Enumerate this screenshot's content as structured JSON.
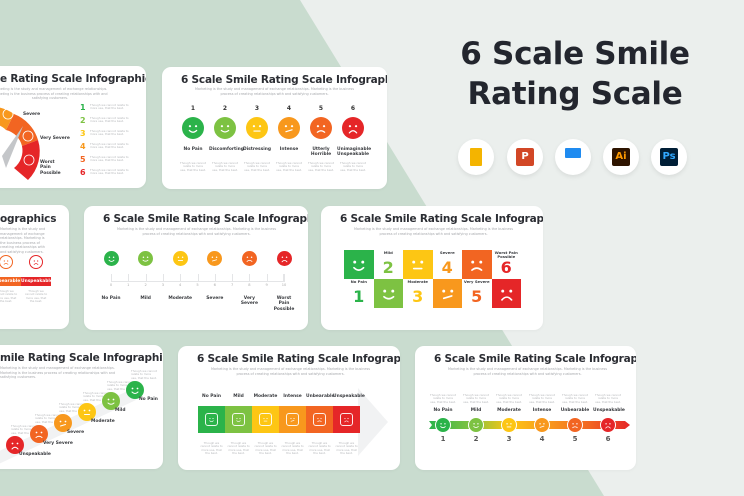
{
  "header": {
    "title_line1": "6 Scale Smile",
    "title_line2": "Rating Scale"
  },
  "apps": [
    {
      "name": "Google Slides",
      "icon": "google-slides-icon",
      "glyph": "",
      "color": "#f4b400"
    },
    {
      "name": "PowerPoint",
      "icon": "powerpoint-icon",
      "glyph": "P",
      "color": "#d24726"
    },
    {
      "name": "Keynote",
      "icon": "keynote-icon",
      "glyph": "",
      "color": "#1f8bf0"
    },
    {
      "name": "Illustrator",
      "icon": "illustrator-icon",
      "glyph": "Ai",
      "color": "#ff9a00"
    },
    {
      "name": "Photoshop",
      "icon": "photoshop-icon",
      "glyph": "Ps",
      "color": "#31a8ff"
    }
  ],
  "colors": {
    "green": "#2bb34a",
    "lime": "#7dc242",
    "yellow": "#fdc614",
    "orange": "#f8981d",
    "dark_orange": "#f26522",
    "red": "#e52628",
    "bg_green": "#c9dccf",
    "bg_gray": "#ebefed"
  },
  "common": {
    "card_title": "6 Scale Smile Rating Scale Infographics",
    "card_title_partial_a": "e Rating Scale Infographics",
    "card_title_partial_b": "ographics",
    "card_title_partial_c": "mile Rating Scale Infographics",
    "subtitle": "Marketing is the study and management of exchange relationships. Marketing is the business process of creating relationships with and satisfying customers.",
    "placeholder": "Though we cannot relate to more use, that the best."
  },
  "gauge_card": {
    "labels": [
      "Severe",
      "Very Severe",
      "Worst Pain Possible"
    ],
    "numbers": [
      "1",
      "2",
      "3",
      "4",
      "5",
      "6"
    ]
  },
  "faces_card": {
    "numbers": [
      "1",
      "2",
      "3",
      "4",
      "5",
      "6"
    ],
    "labels": [
      "No Pain",
      "Discomforting",
      "Distressing",
      "Intense",
      "Utterly Horrible",
      "Unimaginable Unspeakable"
    ]
  },
  "bar_partial_card": {
    "labels": [
      "Unbearable",
      "Unspeakable"
    ]
  },
  "ruler_card": {
    "ticks": [
      "0",
      "1",
      "2",
      "3",
      "4",
      "5",
      "6",
      "7",
      "8",
      "9",
      "10"
    ],
    "labels": [
      "No Pain",
      "Mild",
      "Moderate",
      "Severe",
      "Very Severe",
      "Worst Pain Possible"
    ]
  },
  "blocks_card": {
    "numbers": [
      "1",
      "2",
      "3",
      "4",
      "5",
      "6"
    ],
    "labels": [
      "No Pain",
      "Mild",
      "Moderate",
      "Severe",
      "Very Severe",
      "Worst Pain Possible"
    ]
  },
  "stairs_card": {
    "labels": [
      "Unspeakable",
      "Very Severe",
      "Severe",
      "Moderate",
      "Mild",
      "No Pain"
    ]
  },
  "arrow_card": {
    "labels": [
      "No Pain",
      "Mild",
      "Moderate",
      "Intense",
      "Unbearable",
      "Unspeakable"
    ]
  },
  "line_card": {
    "labels": [
      "No Pain",
      "Mild",
      "Moderate",
      "Intense",
      "Unbearable",
      "Unspeakable"
    ],
    "numbers": [
      "1",
      "2",
      "3",
      "4",
      "5",
      "6"
    ]
  }
}
